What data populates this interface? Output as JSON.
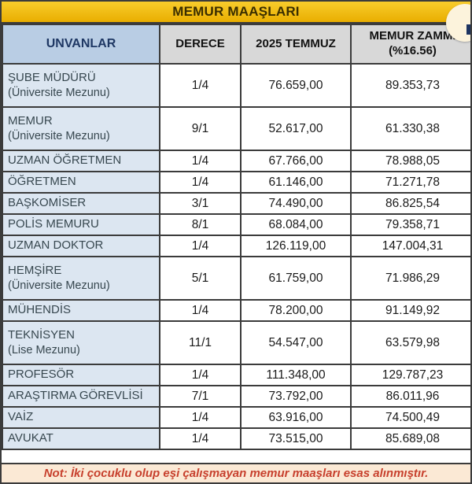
{
  "title": "MEMUR MAAŞLARI",
  "header": {
    "unvanlar": "UNVANLAR",
    "derece": "DERECE",
    "temmuz": "2025 TEMMUZ",
    "zam_line1": "MEMUR ZAMMI",
    "zam_line2": "(%16.56)"
  },
  "rows": [
    {
      "title": "ŞUBE MÜDÜRÜ",
      "subtitle": "(Üniversite Mezunu)",
      "derece": "1/4",
      "temmuz": "76.659,00",
      "zam": "89.353,73"
    },
    {
      "title": "MEMUR",
      "subtitle": "(Üniversite Mezunu)",
      "derece": "9/1",
      "temmuz": "52.617,00",
      "zam": "61.330,38"
    },
    {
      "title": "UZMAN ÖĞRETMEN",
      "subtitle": "",
      "derece": "1/4",
      "temmuz": "67.766,00",
      "zam": "78.988,05"
    },
    {
      "title": "ÖĞRETMEN",
      "subtitle": "",
      "derece": "1/4",
      "temmuz": "61.146,00",
      "zam": "71.271,78"
    },
    {
      "title": "BAŞKOMİSER",
      "subtitle": "",
      "derece": "3/1",
      "temmuz": "74.490,00",
      "zam": "86.825,54"
    },
    {
      "title": "POLİS MEMURU",
      "subtitle": "",
      "derece": "8/1",
      "temmuz": "68.084,00",
      "zam": "79.358,71"
    },
    {
      "title": "UZMAN DOKTOR",
      "subtitle": "",
      "derece": "1/4",
      "temmuz": "126.119,00",
      "zam": "147.004,31"
    },
    {
      "title": "HEMŞİRE",
      "subtitle": "(Üniversite Mezunu)",
      "derece": "5/1",
      "temmuz": "61.759,00",
      "zam": "71.986,29"
    },
    {
      "title": "MÜHENDİS",
      "subtitle": "",
      "derece": "1/4",
      "temmuz": "78.200,00",
      "zam": "91.149,92"
    },
    {
      "title": "TEKNİSYEN",
      "subtitle": "(Lise Mezunu)",
      "derece": "11/1",
      "temmuz": "54.547,00",
      "zam": "63.579,98"
    },
    {
      "title": "PROFESÖR",
      "subtitle": "",
      "derece": "1/4",
      "temmuz": "111.348,00",
      "zam": "129.787,23"
    },
    {
      "title": "ARAŞTIRMA GÖREVLİSİ",
      "subtitle": "",
      "derece": "7/1",
      "temmuz": "73.792,00",
      "zam": "86.011,96"
    },
    {
      "title": "VAİZ",
      "subtitle": "",
      "derece": "1/4",
      "temmuz": "63.916,00",
      "zam": "74.500,49"
    },
    {
      "title": "AVUKAT",
      "subtitle": "",
      "derece": "1/4",
      "temmuz": "73.515,00",
      "zam": "85.689,08"
    }
  ],
  "note": "Not: İki çocuklu olup eşi çalışmayan memur maaşları esas alınmıştır.",
  "colors": {
    "title_bg_top": "#F8CC2C",
    "title_bg_bottom": "#E9AE00",
    "title_text": "#3A2E00",
    "header_blue_bg": "#B9CDE4",
    "header_blue_text": "#1F3864",
    "header_gray_bg": "#D8D8D8",
    "row_blue_bg": "#DCE6F1",
    "row_title_text": "#37474F",
    "value_text": "#1A1A1A",
    "border": "#3B3B3B",
    "note_bg": "#FBE9D5",
    "note_text": "#C7402D"
  }
}
